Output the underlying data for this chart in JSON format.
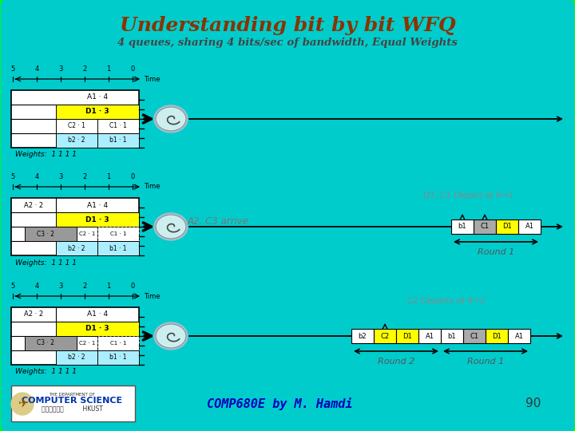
{
  "title": "Understanding bit by bit WFQ",
  "subtitle": "4 queues, sharing 4 bits/sec of bandwidth, Equal Weights",
  "bg_color": "#00CCCC",
  "outer_bg": "#8B6914",
  "title_color": "#8B3300",
  "annotation1": "A2, C3 arrive",
  "annotation2": "D1, C1 Depart at R=1",
  "annotation3": "C2 Departs at R=2",
  "round1_label": "Round 1",
  "round2_label": "Round 2",
  "footer_text": "COMP680E by M. Hamdi",
  "footer_page": "90",
  "weights_label": "Weights:  1 1 1 1"
}
